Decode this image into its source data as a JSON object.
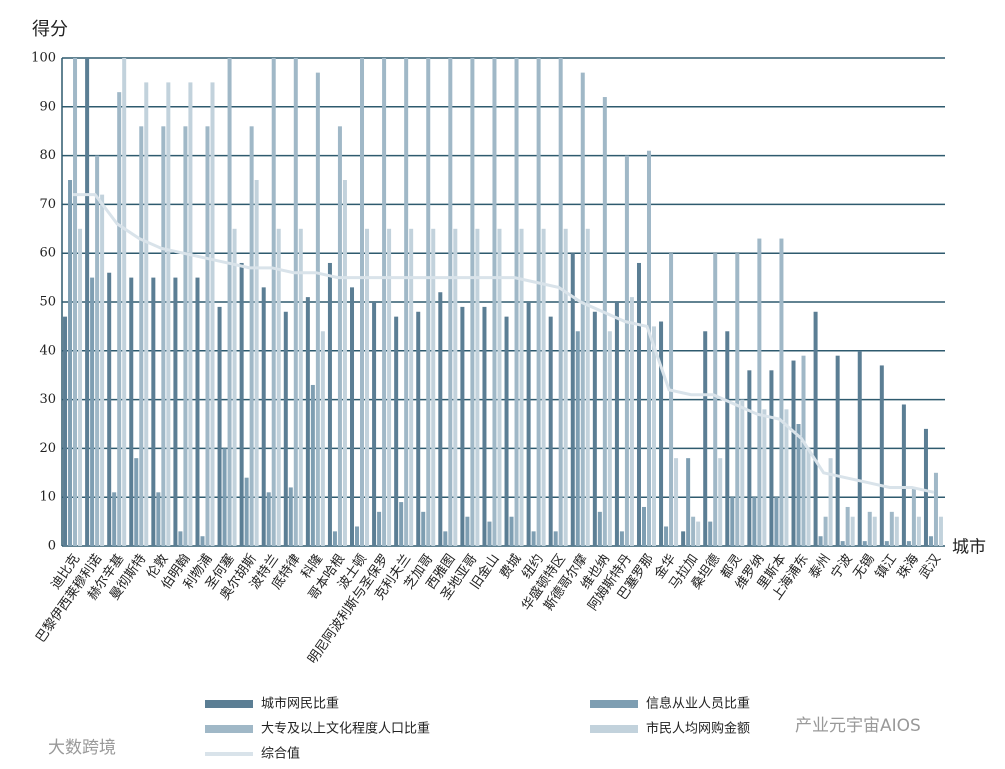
{
  "chart_data": {
    "type": "bar",
    "y_label": "得分",
    "x_label": "城市",
    "categories": [
      "迪比克",
      "巴黎伊西莱穆利诺",
      "赫尔辛基",
      "曼彻斯特",
      "伦敦",
      "伯明翰",
      "利物浦",
      "圣何塞",
      "奥尔胡斯",
      "波特兰",
      "底特律",
      "科隆",
      "哥本哈根",
      "波士顿",
      "明尼阿波利斯与圣保罗",
      "克利夫兰",
      "芝加哥",
      "西雅图",
      "圣地亚哥",
      "旧金山",
      "费城",
      "纽约",
      "华盛顿特区",
      "斯德哥尔摩",
      "维也纳",
      "阿姆斯特丹",
      "巴塞罗那",
      "金华",
      "马拉加",
      "桑坦德",
      "都灵",
      "维罗纳",
      "里斯本",
      "上海浦东",
      "泰州",
      "宁波",
      "无锡",
      "镇江",
      "珠海",
      "武汉"
    ],
    "series": [
      {
        "name": "城市网民比重",
        "color": "#5b7e94",
        "values": [
          47,
          100,
          56,
          55,
          55,
          55,
          55,
          49,
          58,
          53,
          48,
          51,
          58,
          53,
          50,
          47,
          48,
          52,
          49,
          49,
          47,
          50,
          47,
          60,
          48,
          50,
          58,
          46,
          3,
          44,
          44,
          36,
          36,
          38,
          48,
          39,
          40,
          37,
          29,
          24
        ]
      },
      {
        "name": "信息从业人员比重",
        "color": "#7e9eb2",
        "values": [
          75,
          55,
          11,
          18,
          11,
          3,
          2,
          20,
          14,
          11,
          12,
          33,
          3,
          4,
          7,
          9,
          7,
          3,
          6,
          5,
          6,
          3,
          3,
          44,
          7,
          3,
          8,
          4,
          18,
          5,
          10,
          10,
          10,
          25,
          2,
          1,
          1,
          1,
          1,
          2
        ]
      },
      {
        "name": "大专及以上文化程度人口比重",
        "color": "#a0b8c7",
        "values": [
          100,
          80,
          93,
          86,
          86,
          86,
          86,
          100,
          86,
          100,
          100,
          97,
          86,
          100,
          100,
          100,
          100,
          100,
          100,
          100,
          100,
          100,
          100,
          97,
          92,
          80,
          81,
          60,
          6,
          60,
          60,
          63,
          63,
          39,
          6,
          8,
          7,
          7,
          12,
          15
        ]
      },
      {
        "name": "市民人均网购金额",
        "color": "#c2d2dc",
        "values": [
          65,
          72,
          100,
          95,
          95,
          95,
          95,
          65,
          75,
          65,
          65,
          44,
          75,
          65,
          65,
          65,
          65,
          65,
          65,
          65,
          65,
          65,
          65,
          65,
          44,
          51,
          45,
          18,
          5,
          18,
          30,
          28,
          28,
          20,
          18,
          6,
          6,
          6,
          6,
          6
        ]
      },
      {
        "name": "综合值",
        "type": "line",
        "color": "#d9e3ea",
        "values": [
          72,
          72,
          66,
          63,
          61,
          60,
          59,
          58,
          57,
          57,
          56,
          56,
          55,
          55,
          55,
          55,
          55,
          55,
          55,
          55,
          55,
          54,
          53,
          50,
          48,
          46,
          45,
          32,
          31,
          31,
          29,
          27,
          26,
          22,
          15,
          14,
          13,
          12,
          12,
          11
        ]
      }
    ],
    "ylim": [
      0,
      100
    ],
    "yticks": [
      0,
      10,
      20,
      30,
      40,
      50,
      60,
      70,
      80,
      90,
      100
    ],
    "grid": true
  },
  "watermarks": [
    "大数跨境",
    "产业元宇宙AIOS"
  ]
}
